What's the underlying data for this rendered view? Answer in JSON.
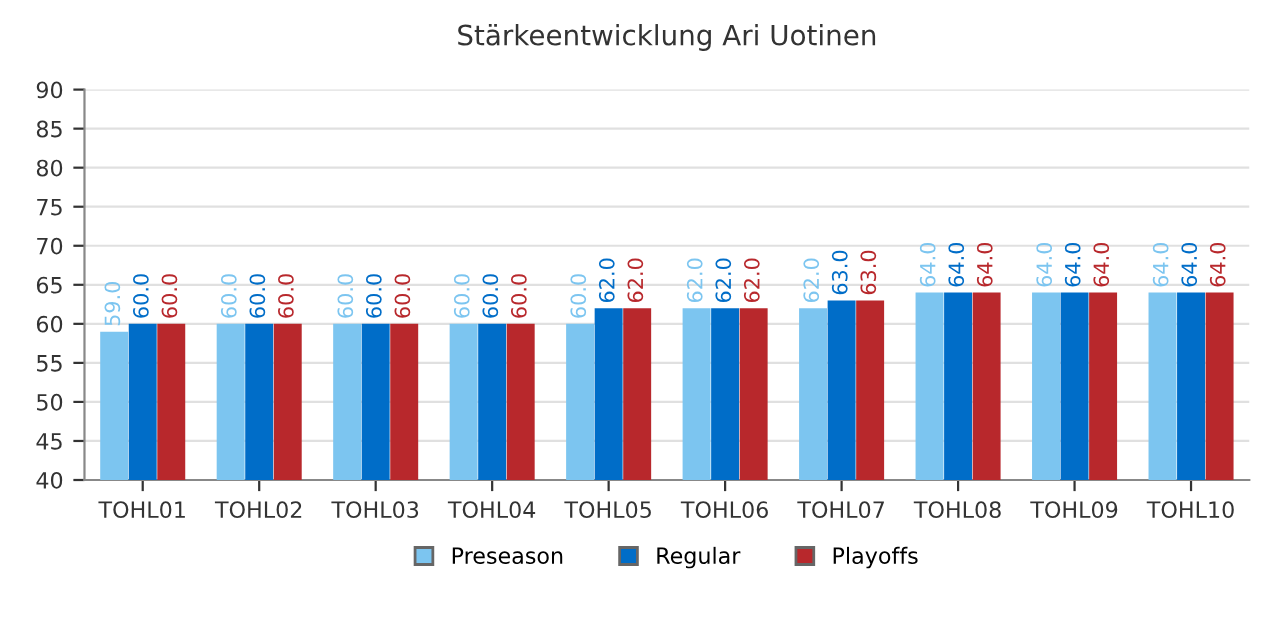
{
  "chart_data": {
    "type": "bar",
    "title": "Stärkeentwicklung Ari Uotinen",
    "categories": [
      "TOHL01",
      "TOHL02",
      "TOHL03",
      "TOHL04",
      "TOHL05",
      "TOHL06",
      "TOHL07",
      "TOHL08",
      "TOHL09",
      "TOHL10"
    ],
    "series": [
      {
        "name": "Preseason",
        "color": "#7cc5f0",
        "values": [
          59,
          60,
          60,
          60,
          60,
          62,
          62,
          64,
          64,
          64
        ],
        "value_labels": [
          "59.0",
          "60.0",
          "60.0",
          "60.0",
          "60.0",
          "62.0",
          "62.0",
          "64.0",
          "64.0",
          "64.0"
        ]
      },
      {
        "name": "Regular",
        "color": "#006dc8",
        "values": [
          60,
          60,
          60,
          60,
          62,
          62,
          63,
          64,
          64,
          64
        ],
        "value_labels": [
          "60.0",
          "60.0",
          "60.0",
          "60.0",
          "62.0",
          "62.0",
          "63.0",
          "64.0",
          "64.0",
          "64.0"
        ]
      },
      {
        "name": "Playoffs",
        "color": "#b8282c",
        "values": [
          60,
          60,
          60,
          60,
          62,
          62,
          63,
          64,
          64,
          64
        ],
        "value_labels": [
          "60.0",
          "60.0",
          "60.0",
          "60.0",
          "62.0",
          "62.0",
          "63.0",
          "64.0",
          "64.0",
          "64.0"
        ]
      }
    ],
    "ylim": [
      40,
      90
    ],
    "yticks": [
      40,
      45,
      50,
      55,
      60,
      65,
      70,
      75,
      80,
      85,
      90
    ],
    "grid": "y",
    "legend": "bottom"
  }
}
